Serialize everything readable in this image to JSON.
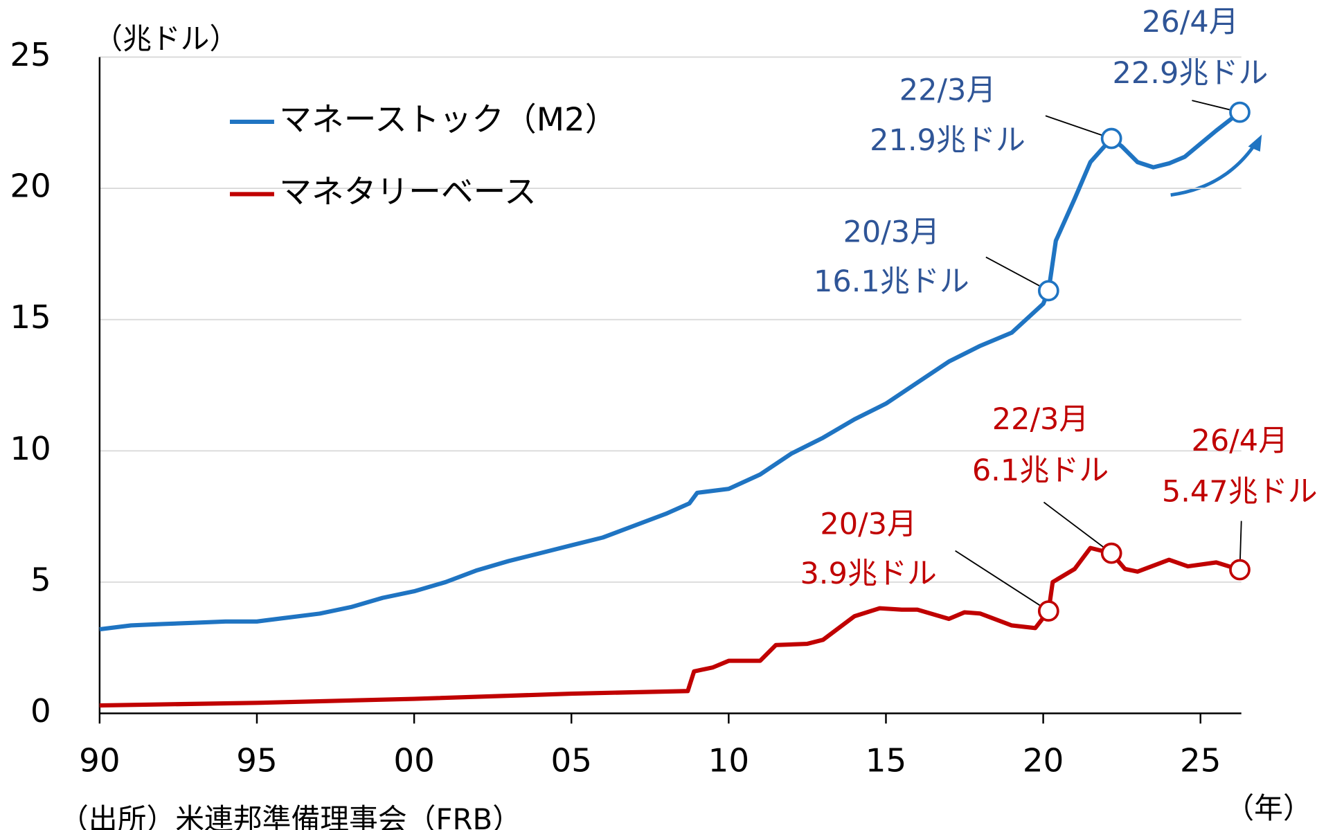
{
  "chart_data": {
    "type": "line",
    "y_label": "（兆ドル）",
    "x_label": "（年）",
    "source": "（出所）米連邦準備理事会（FRB）",
    "xlim": [
      1990,
      2027
    ],
    "ylim": [
      0,
      25
    ],
    "xticks": [
      {
        "value": 1990,
        "label": "90"
      },
      {
        "value": 1995,
        "label": "95"
      },
      {
        "value": 2000,
        "label": "00"
      },
      {
        "value": 2005,
        "label": "05"
      },
      {
        "value": 2010,
        "label": "10"
      },
      {
        "value": 2015,
        "label": "15"
      },
      {
        "value": 2020,
        "label": "20"
      },
      {
        "value": 2025,
        "label": "25"
      }
    ],
    "yticks": [
      0,
      5,
      10,
      15,
      20,
      25
    ],
    "grid": true,
    "series": [
      {
        "name": "マネーストック（M2）",
        "color": "#1f74c2",
        "x": [
          1990,
          1991,
          1992,
          1993,
          1994,
          1995,
          1996,
          1997,
          1998,
          1999,
          2000,
          2001,
          2002,
          2003,
          2004,
          2005,
          2006,
          2007,
          2008,
          2008.75,
          2009,
          2010,
          2011,
          2012,
          2013,
          2014,
          2015,
          2016,
          2017,
          2018,
          2019,
          2020,
          2020.17,
          2020.4,
          2021,
          2021.5,
          2022.17,
          2022.5,
          2023,
          2023.5,
          2024,
          2024.5,
          2025,
          2025.5,
          2026.25
        ],
        "values": [
          3.2,
          3.35,
          3.4,
          3.45,
          3.5,
          3.5,
          3.65,
          3.8,
          4.05,
          4.4,
          4.65,
          5.0,
          5.45,
          5.8,
          6.1,
          6.4,
          6.7,
          7.15,
          7.6,
          8.0,
          8.4,
          8.55,
          9.1,
          9.9,
          10.5,
          11.2,
          11.8,
          12.6,
          13.4,
          14.0,
          14.5,
          15.6,
          16.1,
          18.0,
          19.6,
          21.0,
          21.9,
          21.6,
          21.0,
          20.8,
          20.95,
          21.2,
          21.7,
          22.2,
          22.9
        ]
      },
      {
        "name": "マネタリーベース",
        "color": "#c00000",
        "x": [
          1990,
          1995,
          2000,
          2005,
          2008.7,
          2008.9,
          2009.5,
          2010,
          2011,
          2011.5,
          2012.5,
          2013,
          2014,
          2014.8,
          2015.5,
          2016,
          2017,
          2017.5,
          2018,
          2019,
          2019.75,
          2020.17,
          2020.3,
          2021,
          2021.5,
          2022.17,
          2022.6,
          2023,
          2024,
          2024.6,
          2025.5,
          2026.25
        ],
        "values": [
          0.3,
          0.4,
          0.55,
          0.75,
          0.85,
          1.6,
          1.75,
          2.0,
          2.0,
          2.6,
          2.65,
          2.8,
          3.7,
          4.0,
          3.95,
          3.95,
          3.6,
          3.85,
          3.8,
          3.35,
          3.25,
          3.9,
          5.0,
          5.5,
          6.3,
          6.1,
          5.5,
          5.4,
          5.85,
          5.6,
          5.75,
          5.47
        ]
      }
    ],
    "annotations": [
      {
        "lines": [
          "20/3月",
          "16.1兆ドル"
        ]
      },
      {
        "lines": [
          "22/3月",
          "21.9兆ドル"
        ]
      },
      {
        "lines": [
          "26/4月",
          "22.9兆ドル"
        ]
      },
      {
        "lines": [
          "20/3月",
          "3.9兆ドル"
        ]
      },
      {
        "lines": [
          "22/3月",
          "6.1兆ドル"
        ]
      },
      {
        "lines": [
          "26/4月",
          "5.47兆ドル"
        ]
      }
    ]
  }
}
